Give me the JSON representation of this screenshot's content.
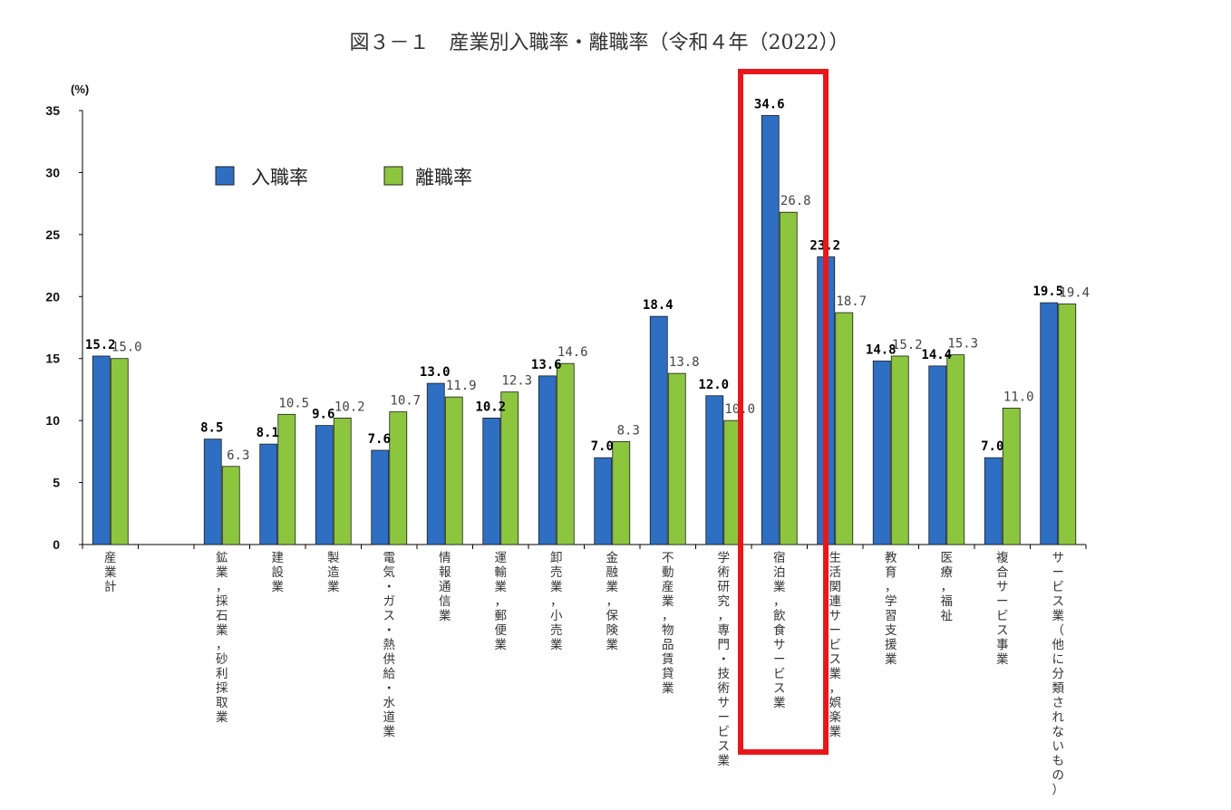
{
  "colors": {
    "series_a": "#2e6fc4",
    "series_b": "#8cc63f",
    "highlight": "#e8171b"
  },
  "chart_data": {
    "type": "bar",
    "title": "図３－１　産業別入職率・離職率（令和４年（2022））",
    "ylabel": "(%)",
    "ylim": [
      0,
      35
    ],
    "yticks": [
      "0",
      "5",
      "10",
      "15",
      "20",
      "25",
      "30",
      "35"
    ],
    "legend_position": "top-left",
    "categories": [
      "産業計",
      "",
      "鉱業，採石業，砂利採取業",
      "建設業",
      "製造業",
      "電気・ガス・熱供給・水道業",
      "情報通信業",
      "運輸業，郵便業",
      "卸売業，小売業",
      "金融業，保険業",
      "不動産業，物品賃貸業",
      "学術研究，専門・技術サービス業",
      "宿泊業，飲食サービス業",
      "生活関連サービス業，娯楽業",
      "教育，学習支援業",
      "医療，福祉",
      "複合サービス事業",
      "サービス業（他に分類されないもの）"
    ],
    "series": [
      {
        "name": "入職率",
        "values": [
          15.2,
          null,
          8.5,
          8.1,
          9.6,
          7.6,
          13.0,
          10.2,
          13.6,
          7.0,
          18.4,
          12.0,
          34.6,
          23.2,
          14.8,
          14.4,
          7.0,
          19.5
        ],
        "labels": [
          "15.2",
          "",
          "8.5",
          "8.1",
          "9.6",
          "7.6",
          "13.0",
          "10.2",
          "13.6",
          "7.0",
          "18.4",
          "12.0",
          "34.6",
          "23.2",
          "14.8",
          "14.4",
          "7.0",
          "19.5"
        ]
      },
      {
        "name": "離職率",
        "values": [
          15.0,
          null,
          6.3,
          10.5,
          10.2,
          10.7,
          11.9,
          12.3,
          14.6,
          8.3,
          13.8,
          10.0,
          26.8,
          18.7,
          15.2,
          15.3,
          11.0,
          19.4
        ],
        "labels": [
          "15.0",
          "",
          "6.3",
          "10.5",
          "10.2",
          "10.7",
          "11.9",
          "12.3",
          "14.6",
          "8.3",
          "13.8",
          "10.0",
          "26.8",
          "18.7",
          "15.2",
          "15.3",
          "11.0",
          "19.4"
        ]
      }
    ],
    "highlighted_category": "宿泊業，飲食サービス業"
  }
}
